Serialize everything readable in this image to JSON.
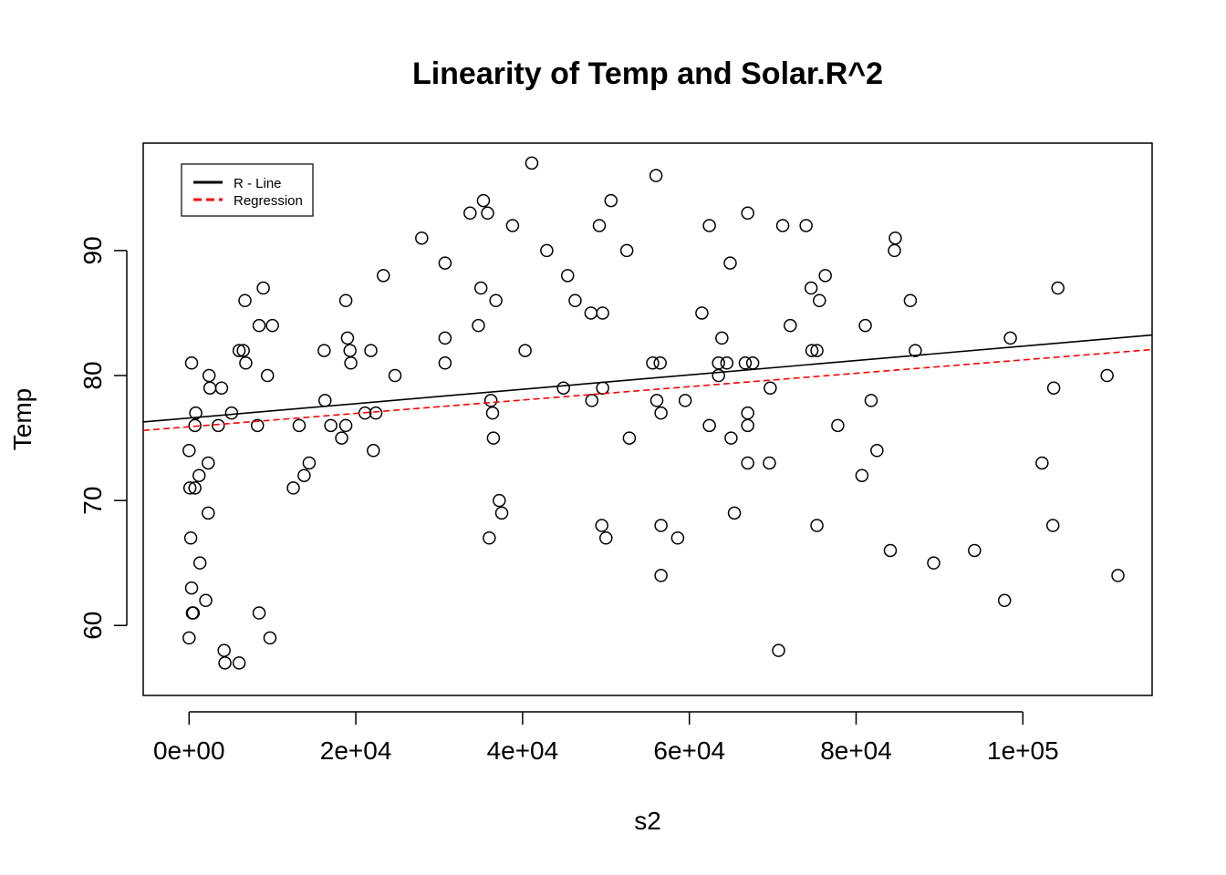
{
  "chart_data": {
    "type": "scatter",
    "title": "Linearity of Temp and Solar.R^2",
    "xlabel": "s2",
    "ylabel": "Temp",
    "xlim": [
      -5500,
      115500
    ],
    "ylim": [
      54.4,
      98.6
    ],
    "x_ticks": [
      0,
      20000,
      40000,
      60000,
      80000,
      100000
    ],
    "x_tick_labels": [
      "0e+00",
      "2e+04",
      "4e+04",
      "6e+04",
      "8e+04",
      "1e+05"
    ],
    "y_ticks": [
      60,
      70,
      80,
      90
    ],
    "y_tick_labels": [
      "60",
      "70",
      "80",
      "90"
    ],
    "grid": false,
    "legend": {
      "position": "top-left",
      "entries": [
        {
          "label": "R - Line",
          "color": "#000000",
          "dash": "solid"
        },
        {
          "label": "Regression",
          "color": "#ff0000",
          "dash": "dashed"
        }
      ]
    },
    "lines": [
      {
        "label": "R - Line",
        "color": "#000000",
        "dash": "solid",
        "intercept": 76.6,
        "slope": 5.75e-05
      },
      {
        "label": "Regression",
        "color": "#ff0000",
        "dash": "dashed",
        "intercept": 75.9,
        "slope": 5.35e-05
      }
    ],
    "points": [
      [
        0,
        74
      ],
      [
        0,
        59
      ],
      [
        100,
        71
      ],
      [
        200,
        67
      ],
      [
        300,
        63
      ],
      [
        400,
        61
      ],
      [
        500,
        61
      ],
      [
        700,
        71
      ],
      [
        300,
        81
      ],
      [
        700,
        76
      ],
      [
        800,
        77
      ],
      [
        1200,
        72
      ],
      [
        1300,
        65
      ],
      [
        2000,
        62
      ],
      [
        2300,
        73
      ],
      [
        2300,
        69
      ],
      [
        2400,
        80
      ],
      [
        2500,
        79
      ],
      [
        3500,
        76
      ],
      [
        3900,
        79
      ],
      [
        4200,
        58
      ],
      [
        4300,
        57
      ],
      [
        5100,
        77
      ],
      [
        6000,
        57
      ],
      [
        6000,
        82
      ],
      [
        6500,
        82
      ],
      [
        6700,
        86
      ],
      [
        6800,
        81
      ],
      [
        8200,
        76
      ],
      [
        8400,
        84
      ],
      [
        8400,
        61
      ],
      [
        8900,
        87
      ],
      [
        9400,
        80
      ],
      [
        9700,
        59
      ],
      [
        10000,
        84
      ],
      [
        12500,
        71
      ],
      [
        13200,
        76
      ],
      [
        13800,
        72
      ],
      [
        14400,
        73
      ],
      [
        16200,
        82
      ],
      [
        16300,
        78
      ],
      [
        17000,
        76
      ],
      [
        18300,
        75
      ],
      [
        18800,
        86
      ],
      [
        18800,
        76
      ],
      [
        19000,
        83
      ],
      [
        19300,
        82
      ],
      [
        19400,
        81
      ],
      [
        21100,
        77
      ],
      [
        21800,
        82
      ],
      [
        22100,
        74
      ],
      [
        22400,
        77
      ],
      [
        23300,
        88
      ],
      [
        24700,
        80
      ],
      [
        27900,
        91
      ],
      [
        30700,
        89
      ],
      [
        30700,
        83
      ],
      [
        30700,
        81
      ],
      [
        33700,
        93
      ],
      [
        34700,
        84
      ],
      [
        35000,
        87
      ],
      [
        35300,
        94
      ],
      [
        35800,
        93
      ],
      [
        36000,
        67
      ],
      [
        36200,
        78
      ],
      [
        36400,
        77
      ],
      [
        36500,
        75
      ],
      [
        36800,
        86
      ],
      [
        37200,
        70
      ],
      [
        37500,
        69
      ],
      [
        38800,
        92
      ],
      [
        40300,
        82
      ],
      [
        41100,
        97
      ],
      [
        42900,
        90
      ],
      [
        44900,
        79
      ],
      [
        45400,
        88
      ],
      [
        46300,
        86
      ],
      [
        48200,
        85
      ],
      [
        48300,
        78
      ],
      [
        49200,
        92
      ],
      [
        49500,
        68
      ],
      [
        49600,
        85
      ],
      [
        49600,
        79
      ],
      [
        50000,
        67
      ],
      [
        50600,
        94
      ],
      [
        52500,
        90
      ],
      [
        52800,
        75
      ],
      [
        55600,
        81
      ],
      [
        56000,
        96
      ],
      [
        56100,
        78
      ],
      [
        56500,
        81
      ],
      [
        56600,
        77
      ],
      [
        56600,
        68
      ],
      [
        56600,
        64
      ],
      [
        58600,
        67
      ],
      [
        59500,
        78
      ],
      [
        61500,
        85
      ],
      [
        62400,
        92
      ],
      [
        62400,
        76
      ],
      [
        63500,
        80
      ],
      [
        63500,
        81
      ],
      [
        63900,
        83
      ],
      [
        64500,
        81
      ],
      [
        64900,
        89
      ],
      [
        65000,
        75
      ],
      [
        65400,
        69
      ],
      [
        66700,
        81
      ],
      [
        67000,
        77
      ],
      [
        67000,
        73
      ],
      [
        67000,
        76
      ],
      [
        67000,
        93
      ],
      [
        67600,
        81
      ],
      [
        69600,
        73
      ],
      [
        69700,
        79
      ],
      [
        70700,
        58
      ],
      [
        71200,
        92
      ],
      [
        72100,
        84
      ],
      [
        74000,
        92
      ],
      [
        74600,
        87
      ],
      [
        74700,
        82
      ],
      [
        75300,
        68
      ],
      [
        75300,
        82
      ],
      [
        75600,
        86
      ],
      [
        76300,
        88
      ],
      [
        77800,
        76
      ],
      [
        80700,
        72
      ],
      [
        81100,
        84
      ],
      [
        81800,
        78
      ],
      [
        82500,
        74
      ],
      [
        84100,
        66
      ],
      [
        84600,
        90
      ],
      [
        84700,
        91
      ],
      [
        86500,
        86
      ],
      [
        87100,
        82
      ],
      [
        89300,
        65
      ],
      [
        94200,
        66
      ],
      [
        97800,
        62
      ],
      [
        98500,
        83
      ],
      [
        102300,
        73
      ],
      [
        103600,
        68
      ],
      [
        103700,
        79
      ],
      [
        104200,
        87
      ],
      [
        110100,
        80
      ],
      [
        111400,
        64
      ]
    ]
  }
}
